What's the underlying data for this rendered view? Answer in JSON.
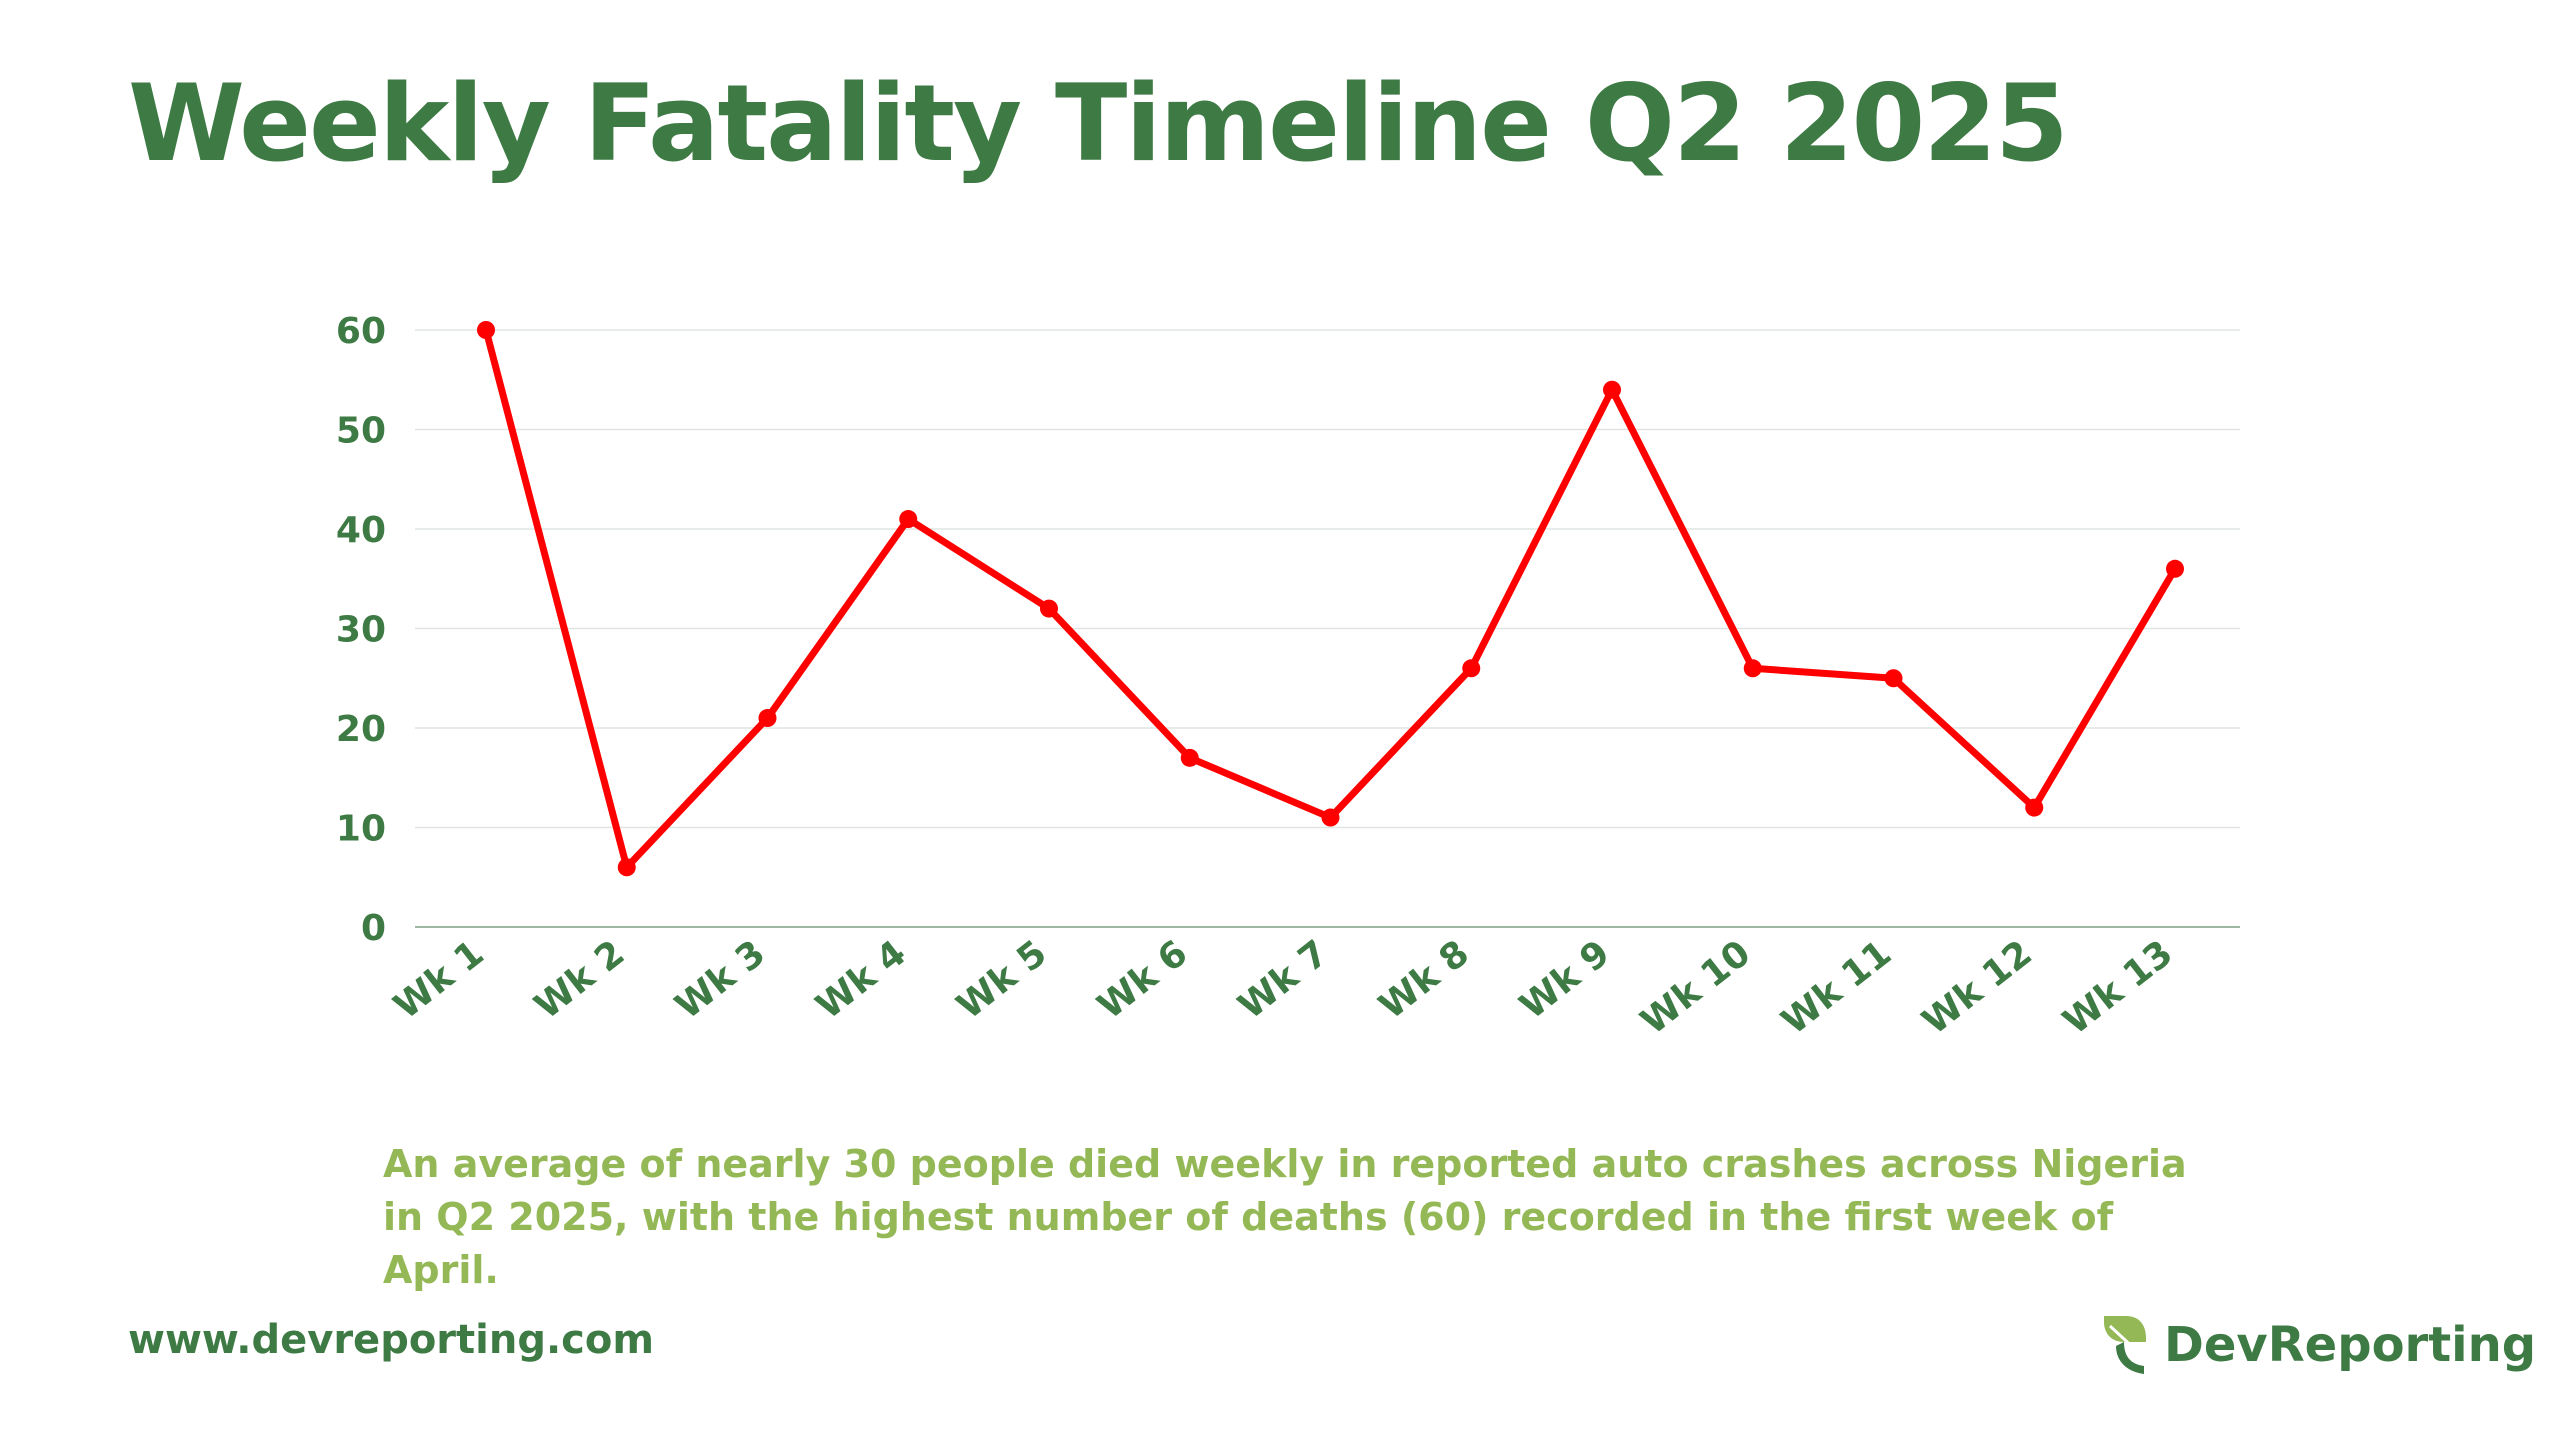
{
  "title": "Weekly Fatality Timeline Q2 2025",
  "caption": "An average of nearly 30 people died weekly in reported auto crashes across Nigeria in Q2 2025, with the highest number of deaths (60) recorded in the first week of April.",
  "footer": {
    "website": "www.devreporting.com",
    "brand_name": "DevReporting",
    "brand_logo_icon": "leaf-logo-icon"
  },
  "colors": {
    "title": "#3d7a44",
    "caption": "#93b855",
    "line": "#ff0000",
    "gridline": "#dfe6e0",
    "axis": "#9fb8a3",
    "logo_light": "#93b855",
    "logo_dark": "#3d7a44"
  },
  "chart_data": {
    "type": "line",
    "categories": [
      "Wk 1",
      "Wk 2",
      "Wk 3",
      "Wk 4",
      "Wk 5",
      "Wk 6",
      "Wk 7",
      "Wk 8",
      "Wk 9",
      "Wk 10",
      "Wk 11",
      "Wk 12",
      "Wk 13"
    ],
    "values": [
      60,
      6,
      21,
      41,
      32,
      17,
      11,
      26,
      54,
      26,
      25,
      12,
      36
    ],
    "ylim": [
      0,
      60
    ],
    "yticks": [
      0,
      10,
      20,
      30,
      40,
      50,
      60
    ],
    "grid": true,
    "legend": false,
    "markers": true
  }
}
